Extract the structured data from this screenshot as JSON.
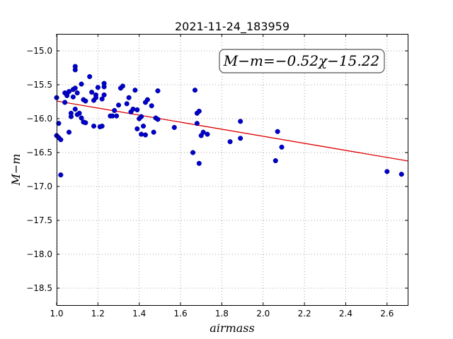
{
  "chart_data": {
    "type": "scatter",
    "title": "2021-11-24_183959",
    "xlabel": "airmass",
    "ylabel": "M−m",
    "xlim": [
      1.0,
      2.7
    ],
    "ylim": [
      -18.75,
      -14.75
    ],
    "y_inverted": true,
    "grid": true,
    "x_ticks": [
      1.0,
      1.2,
      1.4,
      1.6,
      1.8,
      2.0,
      2.2,
      2.4,
      2.6
    ],
    "x_tick_labels": [
      "1.0",
      "1.2",
      "1.4",
      "1.6",
      "1.8",
      "2.0",
      "2.2",
      "2.4",
      "2.6"
    ],
    "y_ticks": [
      -15.0,
      -15.5,
      -16.0,
      -16.5,
      -17.0,
      -17.5,
      -18.0,
      -18.5
    ],
    "y_tick_labels": [
      "−15.0",
      "−15.5",
      "−16.0",
      "−16.5",
      "−17.0",
      "−17.5",
      "−18.0",
      "−18.5"
    ],
    "annotation": "M−m=−0.52χ−15.22",
    "annotation_position": "top-right",
    "fit": {
      "slope": -0.52,
      "intercept": -15.22,
      "color": "#dd0000"
    },
    "point_color": "#0000cc",
    "points": [
      [
        1.0,
        -15.69
      ],
      [
        1.0,
        -16.25
      ],
      [
        1.01,
        -16.07
      ],
      [
        1.01,
        -16.28
      ],
      [
        1.02,
        -16.31
      ],
      [
        1.02,
        -16.83
      ],
      [
        1.04,
        -15.76
      ],
      [
        1.04,
        -15.62
      ],
      [
        1.05,
        -15.63
      ],
      [
        1.05,
        -15.66
      ],
      [
        1.06,
        -15.6
      ],
      [
        1.06,
        -16.2
      ],
      [
        1.07,
        -15.97
      ],
      [
        1.07,
        -15.92
      ],
      [
        1.08,
        -15.68
      ],
      [
        1.08,
        -15.57
      ],
      [
        1.09,
        -15.86
      ],
      [
        1.09,
        -15.28
      ],
      [
        1.09,
        -15.23
      ],
      [
        1.09,
        -15.55
      ],
      [
        1.1,
        -15.94
      ],
      [
        1.1,
        -15.62
      ],
      [
        1.11,
        -15.92
      ],
      [
        1.12,
        -15.49
      ],
      [
        1.12,
        -15.99
      ],
      [
        1.13,
        -16.05
      ],
      [
        1.13,
        -15.72
      ],
      [
        1.14,
        -15.74
      ],
      [
        1.14,
        -16.06
      ],
      [
        1.16,
        -15.38
      ],
      [
        1.17,
        -15.61
      ],
      [
        1.18,
        -16.11
      ],
      [
        1.18,
        -15.73
      ],
      [
        1.19,
        -15.65
      ],
      [
        1.19,
        -15.69
      ],
      [
        1.2,
        -15.54
      ],
      [
        1.21,
        -16.12
      ],
      [
        1.22,
        -16.11
      ],
      [
        1.22,
        -15.71
      ],
      [
        1.23,
        -15.53
      ],
      [
        1.23,
        -15.48
      ],
      [
        1.23,
        -15.65
      ],
      [
        1.26,
        -15.96
      ],
      [
        1.27,
        -15.96
      ],
      [
        1.28,
        -15.88
      ],
      [
        1.29,
        -15.96
      ],
      [
        1.3,
        -15.8
      ],
      [
        1.31,
        -15.55
      ],
      [
        1.32,
        -15.52
      ],
      [
        1.34,
        -15.78
      ],
      [
        1.35,
        -15.69
      ],
      [
        1.36,
        -15.9
      ],
      [
        1.37,
        -15.86
      ],
      [
        1.38,
        -15.58
      ],
      [
        1.39,
        -16.15
      ],
      [
        1.39,
        -15.87
      ],
      [
        1.4,
        -16.0
      ],
      [
        1.41,
        -15.97
      ],
      [
        1.41,
        -16.23
      ],
      [
        1.42,
        -16.11
      ],
      [
        1.43,
        -16.24
      ],
      [
        1.43,
        -15.76
      ],
      [
        1.44,
        -15.72
      ],
      [
        1.46,
        -15.81
      ],
      [
        1.47,
        -16.2
      ],
      [
        1.48,
        -15.99
      ],
      [
        1.49,
        -15.59
      ],
      [
        1.49,
        -16.01
      ],
      [
        1.57,
        -16.13
      ],
      [
        1.66,
        -16.5
      ],
      [
        1.67,
        -15.58
      ],
      [
        1.68,
        -15.92
      ],
      [
        1.68,
        -16.07
      ],
      [
        1.69,
        -15.89
      ],
      [
        1.69,
        -16.66
      ],
      [
        1.7,
        -16.25
      ],
      [
        1.71,
        -16.2
      ],
      [
        1.73,
        -16.23
      ],
      [
        1.84,
        -16.34
      ],
      [
        1.89,
        -16.04
      ],
      [
        1.89,
        -16.29
      ],
      [
        2.06,
        -16.62
      ],
      [
        2.07,
        -16.19
      ],
      [
        2.09,
        -16.42
      ],
      [
        2.6,
        -16.78
      ],
      [
        2.67,
        -16.82
      ]
    ]
  }
}
